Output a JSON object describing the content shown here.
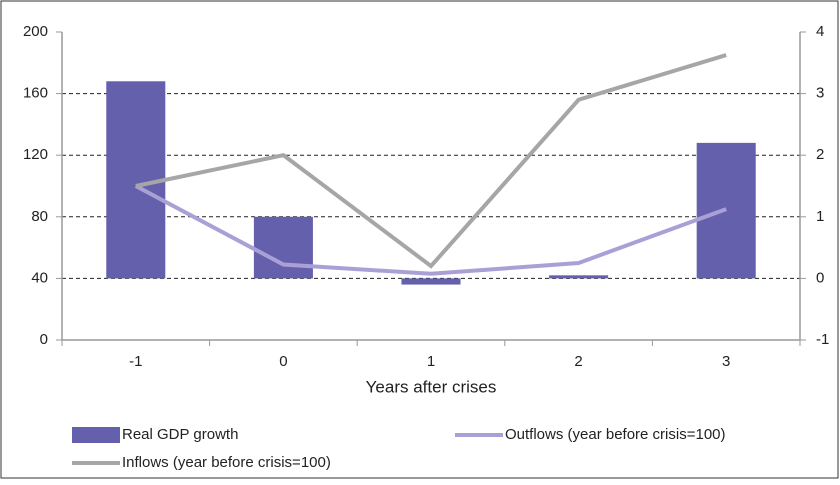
{
  "chart_data": {
    "type": "combo",
    "x_label": "Years after crises",
    "categories": [
      "-1",
      "0",
      "1",
      "2",
      "3"
    ],
    "ylim": [
      0,
      200
    ],
    "yticks": [
      0,
      40,
      80,
      120,
      160,
      200
    ],
    "y2lim": [
      -1,
      4
    ],
    "y2ticks": [
      -1,
      0,
      1,
      2,
      3,
      4
    ],
    "grid": true,
    "legend": "bottom",
    "series": [
      {
        "name": "Real GDP growth",
        "type": "bar",
        "axis": "y2",
        "color": "#6560ac",
        "values": [
          3.2,
          1.0,
          -0.1,
          0.05,
          2.2
        ]
      },
      {
        "name": "Outflows (year before crisis=100)",
        "type": "line",
        "color": "#a9a1d6",
        "values": [
          100,
          49,
          43,
          50,
          85
        ]
      },
      {
        "name": "Inflows (year before crisis=100)",
        "type": "line",
        "color": "#a6a6a6",
        "values": [
          100,
          120,
          48,
          156,
          185
        ]
      }
    ]
  }
}
